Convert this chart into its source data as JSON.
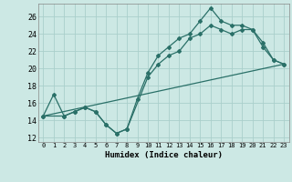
{
  "xlabel": "Humidex (Indice chaleur)",
  "xlim": [
    -0.5,
    23.5
  ],
  "ylim": [
    11.5,
    27.5
  ],
  "yticks": [
    12,
    14,
    16,
    18,
    20,
    22,
    24,
    26
  ],
  "xticks": [
    0,
    1,
    2,
    3,
    4,
    5,
    6,
    7,
    8,
    9,
    10,
    11,
    12,
    13,
    14,
    15,
    16,
    17,
    18,
    19,
    20,
    21,
    22,
    23
  ],
  "bg_color": "#cce8e4",
  "line_color": "#2a7068",
  "grid_color": "#aacfcb",
  "line1_x": [
    0,
    1,
    2,
    3,
    4,
    5,
    6,
    7,
    8,
    9,
    10,
    11,
    12,
    13,
    14,
    15,
    16,
    17,
    18,
    19,
    20,
    21,
    22,
    23
  ],
  "line1_y": [
    14.5,
    17.0,
    14.5,
    15.0,
    15.5,
    15.0,
    13.5,
    12.5,
    13.0,
    16.5,
    19.5,
    21.5,
    22.5,
    23.5,
    24.0,
    25.5,
    27.0,
    25.5,
    25.0,
    25.0,
    24.5,
    23.0,
    21.0,
    20.5
  ],
  "line2_x": [
    0,
    2,
    3,
    4,
    5,
    6,
    7,
    8,
    10,
    11,
    12,
    13,
    14,
    15,
    16,
    17,
    18,
    19,
    20,
    21,
    22,
    23
  ],
  "line2_y": [
    14.5,
    14.5,
    15.0,
    15.5,
    15.0,
    13.5,
    12.5,
    13.0,
    19.0,
    20.5,
    21.5,
    22.0,
    23.5,
    24.0,
    25.0,
    24.5,
    24.0,
    24.5,
    24.5,
    22.5,
    21.0,
    20.5
  ],
  "line3_x": [
    0,
    23
  ],
  "line3_y": [
    14.5,
    20.5
  ]
}
